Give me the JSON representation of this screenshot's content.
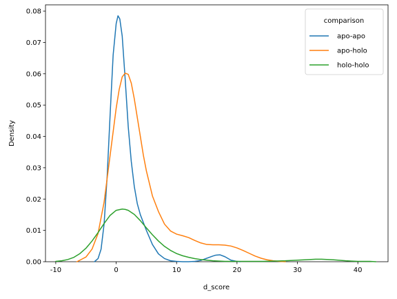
{
  "chart_data": {
    "type": "line",
    "xlabel": "d_score",
    "ylabel": "Density",
    "xlim": [
      -11.7,
      45.0
    ],
    "ylim": [
      0,
      0.082
    ],
    "xticks": [
      -10,
      0,
      10,
      20,
      30,
      40
    ],
    "yticks": [
      0.0,
      0.01,
      0.02,
      0.03,
      0.04,
      0.05,
      0.06,
      0.07,
      0.08
    ],
    "ytick_labels": [
      "0.00",
      "0.01",
      "0.02",
      "0.03",
      "0.04",
      "0.05",
      "0.06",
      "0.07",
      "0.08"
    ],
    "legend": {
      "title": "comparison",
      "position": "top-right"
    },
    "grid": false,
    "series": [
      {
        "name": "apo-apo",
        "color": "#1f77b4",
        "x": [
          -3.6,
          -3.0,
          -2.5,
          -2.0,
          -1.5,
          -1.0,
          -0.5,
          0.0,
          0.3,
          0.6,
          1.0,
          1.5,
          2.0,
          2.5,
          3.0,
          3.5,
          4.0,
          5.0,
          6.0,
          7.0,
          8.0,
          9.0,
          10.0,
          11.0,
          12.0,
          13.0,
          14.0,
          15.0,
          16.0,
          16.5,
          17.2,
          18.0,
          19.0,
          20.0,
          20.5
        ],
        "y": [
          0.0,
          0.001,
          0.004,
          0.012,
          0.027,
          0.047,
          0.066,
          0.076,
          0.0785,
          0.0775,
          0.072,
          0.058,
          0.043,
          0.032,
          0.024,
          0.0185,
          0.015,
          0.01,
          0.0055,
          0.0025,
          0.001,
          0.0003,
          0.0001,
          0.0,
          0.0,
          0.0001,
          0.0004,
          0.0011,
          0.0018,
          0.0021,
          0.0022,
          0.0016,
          0.0005,
          0.0001,
          0.0
        ]
      },
      {
        "name": "apo-holo",
        "color": "#ff7f0e",
        "x": [
          -6.5,
          -6.0,
          -5.0,
          -4.0,
          -3.0,
          -2.0,
          -1.0,
          0.0,
          0.5,
          1.0,
          1.5,
          2.0,
          2.5,
          3.0,
          3.5,
          4.0,
          4.5,
          5.0,
          5.5,
          6.0,
          7.0,
          8.0,
          9.0,
          10.0,
          11.0,
          12.0,
          13.0,
          14.0,
          15.0,
          16.0,
          17.0,
          18.0,
          19.0,
          20.0,
          21.0,
          22.0,
          23.0,
          24.0,
          25.0,
          26.0,
          27.0,
          28.0
        ],
        "y": [
          0.0,
          0.0005,
          0.0015,
          0.004,
          0.009,
          0.019,
          0.034,
          0.049,
          0.055,
          0.059,
          0.0602,
          0.0598,
          0.057,
          0.052,
          0.046,
          0.04,
          0.034,
          0.029,
          0.025,
          0.021,
          0.016,
          0.012,
          0.0098,
          0.0088,
          0.0083,
          0.0077,
          0.0068,
          0.006,
          0.0055,
          0.0054,
          0.0054,
          0.0053,
          0.005,
          0.0044,
          0.0036,
          0.0027,
          0.0018,
          0.0011,
          0.0006,
          0.0003,
          0.0001,
          0.0
        ]
      },
      {
        "name": "holo-holo",
        "color": "#2ca02c",
        "x": [
          -10.0,
          -9.0,
          -8.0,
          -7.0,
          -6.0,
          -5.0,
          -4.0,
          -3.0,
          -2.0,
          -1.0,
          0.0,
          1.0,
          1.5,
          2.0,
          3.0,
          4.0,
          5.0,
          6.0,
          7.0,
          8.0,
          9.0,
          10.0,
          11.0,
          12.0,
          13.0,
          14.0,
          15.0,
          16.0,
          18.0,
          20.0,
          22.0,
          24.0,
          26.0,
          28.0,
          30.0,
          32.0,
          33.0,
          34.0,
          36.0,
          38.0,
          40.0,
          42.0,
          43.0
        ],
        "y": [
          0.0001,
          0.0003,
          0.0007,
          0.0014,
          0.0026,
          0.0043,
          0.0066,
          0.0093,
          0.0122,
          0.0148,
          0.0164,
          0.0168,
          0.0167,
          0.0164,
          0.0151,
          0.0131,
          0.0108,
          0.0086,
          0.0066,
          0.0049,
          0.0036,
          0.0026,
          0.0019,
          0.0014,
          0.001,
          0.0007,
          0.0005,
          0.0003,
          0.0001,
          0.0001,
          0.0001,
          0.0001,
          0.0002,
          0.0003,
          0.0005,
          0.0007,
          0.0008,
          0.0008,
          0.0006,
          0.0003,
          0.0001,
          0.0001,
          0.0
        ]
      }
    ]
  }
}
